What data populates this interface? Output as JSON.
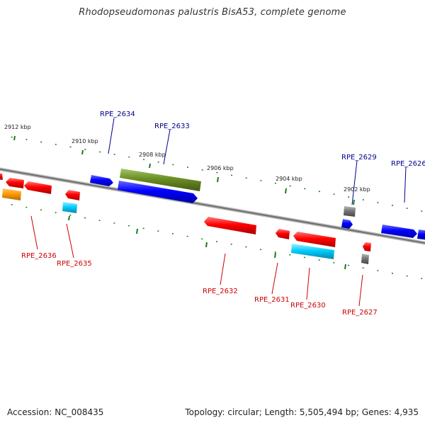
{
  "title": "Rhodopseudomonas palustris BisA53, complete genome",
  "footer": {
    "accession": "Accession: NC_008435",
    "summary": "Topology: circular; Length: 5,505,494 bp; Genes: 4,935"
  },
  "colors": {
    "backbone": "#7a7a7a",
    "scale_ticks": "#1a7a1a",
    "forward_label": "#00008b",
    "reverse_label": "#cc0000",
    "red_gene": "#ff0000",
    "blue_gene": "#0000ff",
    "olive_gene": "#6b8e23",
    "cyan_gene": "#00ccff",
    "orange_gene": "#ff9900",
    "gray_gene": "#666666"
  },
  "scale_labels": [
    "2912 kbp",
    "2910 kbp",
    "2908 kbp",
    "2906 kbp",
    "2904 kbp",
    "2902 kbp"
  ],
  "forward_labels": [
    "RPE_2634",
    "RPE_2633",
    "RPE_2629",
    "RPE_2626"
  ],
  "reverse_labels": [
    "RPE_2636",
    "RPE_2635",
    "RPE_2632",
    "RPE_2631",
    "RPE_2630",
    "RPE_2627"
  ]
}
